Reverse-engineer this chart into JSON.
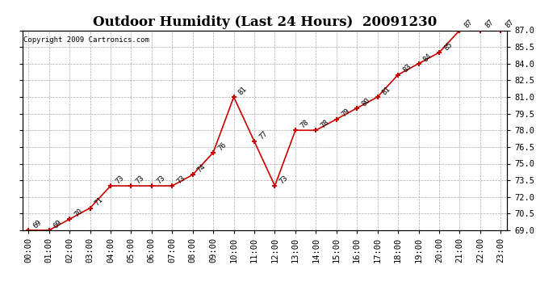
{
  "title": "Outdoor Humidity (Last 24 Hours)  20091230",
  "copyright": "Copyright 2009 Cartronics.com",
  "x_labels": [
    "00:00",
    "01:00",
    "02:00",
    "03:00",
    "04:00",
    "05:00",
    "06:00",
    "07:00",
    "08:00",
    "09:00",
    "10:00",
    "11:00",
    "12:00",
    "13:00",
    "14:00",
    "15:00",
    "16:00",
    "17:00",
    "18:00",
    "19:00",
    "20:00",
    "21:00",
    "22:00",
    "23:00"
  ],
  "x_values": [
    0,
    1,
    2,
    3,
    4,
    5,
    6,
    7,
    8,
    9,
    10,
    11,
    12,
    13,
    14,
    15,
    16,
    17,
    18,
    19,
    20,
    21,
    22,
    23
  ],
  "y_values": [
    69,
    69,
    70,
    71,
    73,
    73,
    73,
    73,
    74,
    76,
    81,
    77,
    73,
    78,
    78,
    79,
    80,
    81,
    83,
    84,
    85,
    87,
    87,
    87
  ],
  "point_labels": [
    "69",
    "69",
    "70",
    "71",
    "73",
    "73",
    "73",
    "73",
    "74",
    "76",
    "81",
    "77",
    "73",
    "78",
    "78",
    "79",
    "80",
    "81",
    "83",
    "84",
    "85",
    "87",
    "87",
    "87"
  ],
  "line_color": "#cc0000",
  "marker_color": "#cc0000",
  "bg_color": "#ffffff",
  "grid_color": "#aaaaaa",
  "ylim": [
    69.0,
    87.0
  ],
  "yticks": [
    69.0,
    70.5,
    72.0,
    73.5,
    75.0,
    76.5,
    78.0,
    79.5,
    81.0,
    82.5,
    84.0,
    85.5,
    87.0
  ],
  "title_fontsize": 12,
  "label_fontsize": 6.5,
  "tick_fontsize": 7.5,
  "copyright_fontsize": 6.5
}
